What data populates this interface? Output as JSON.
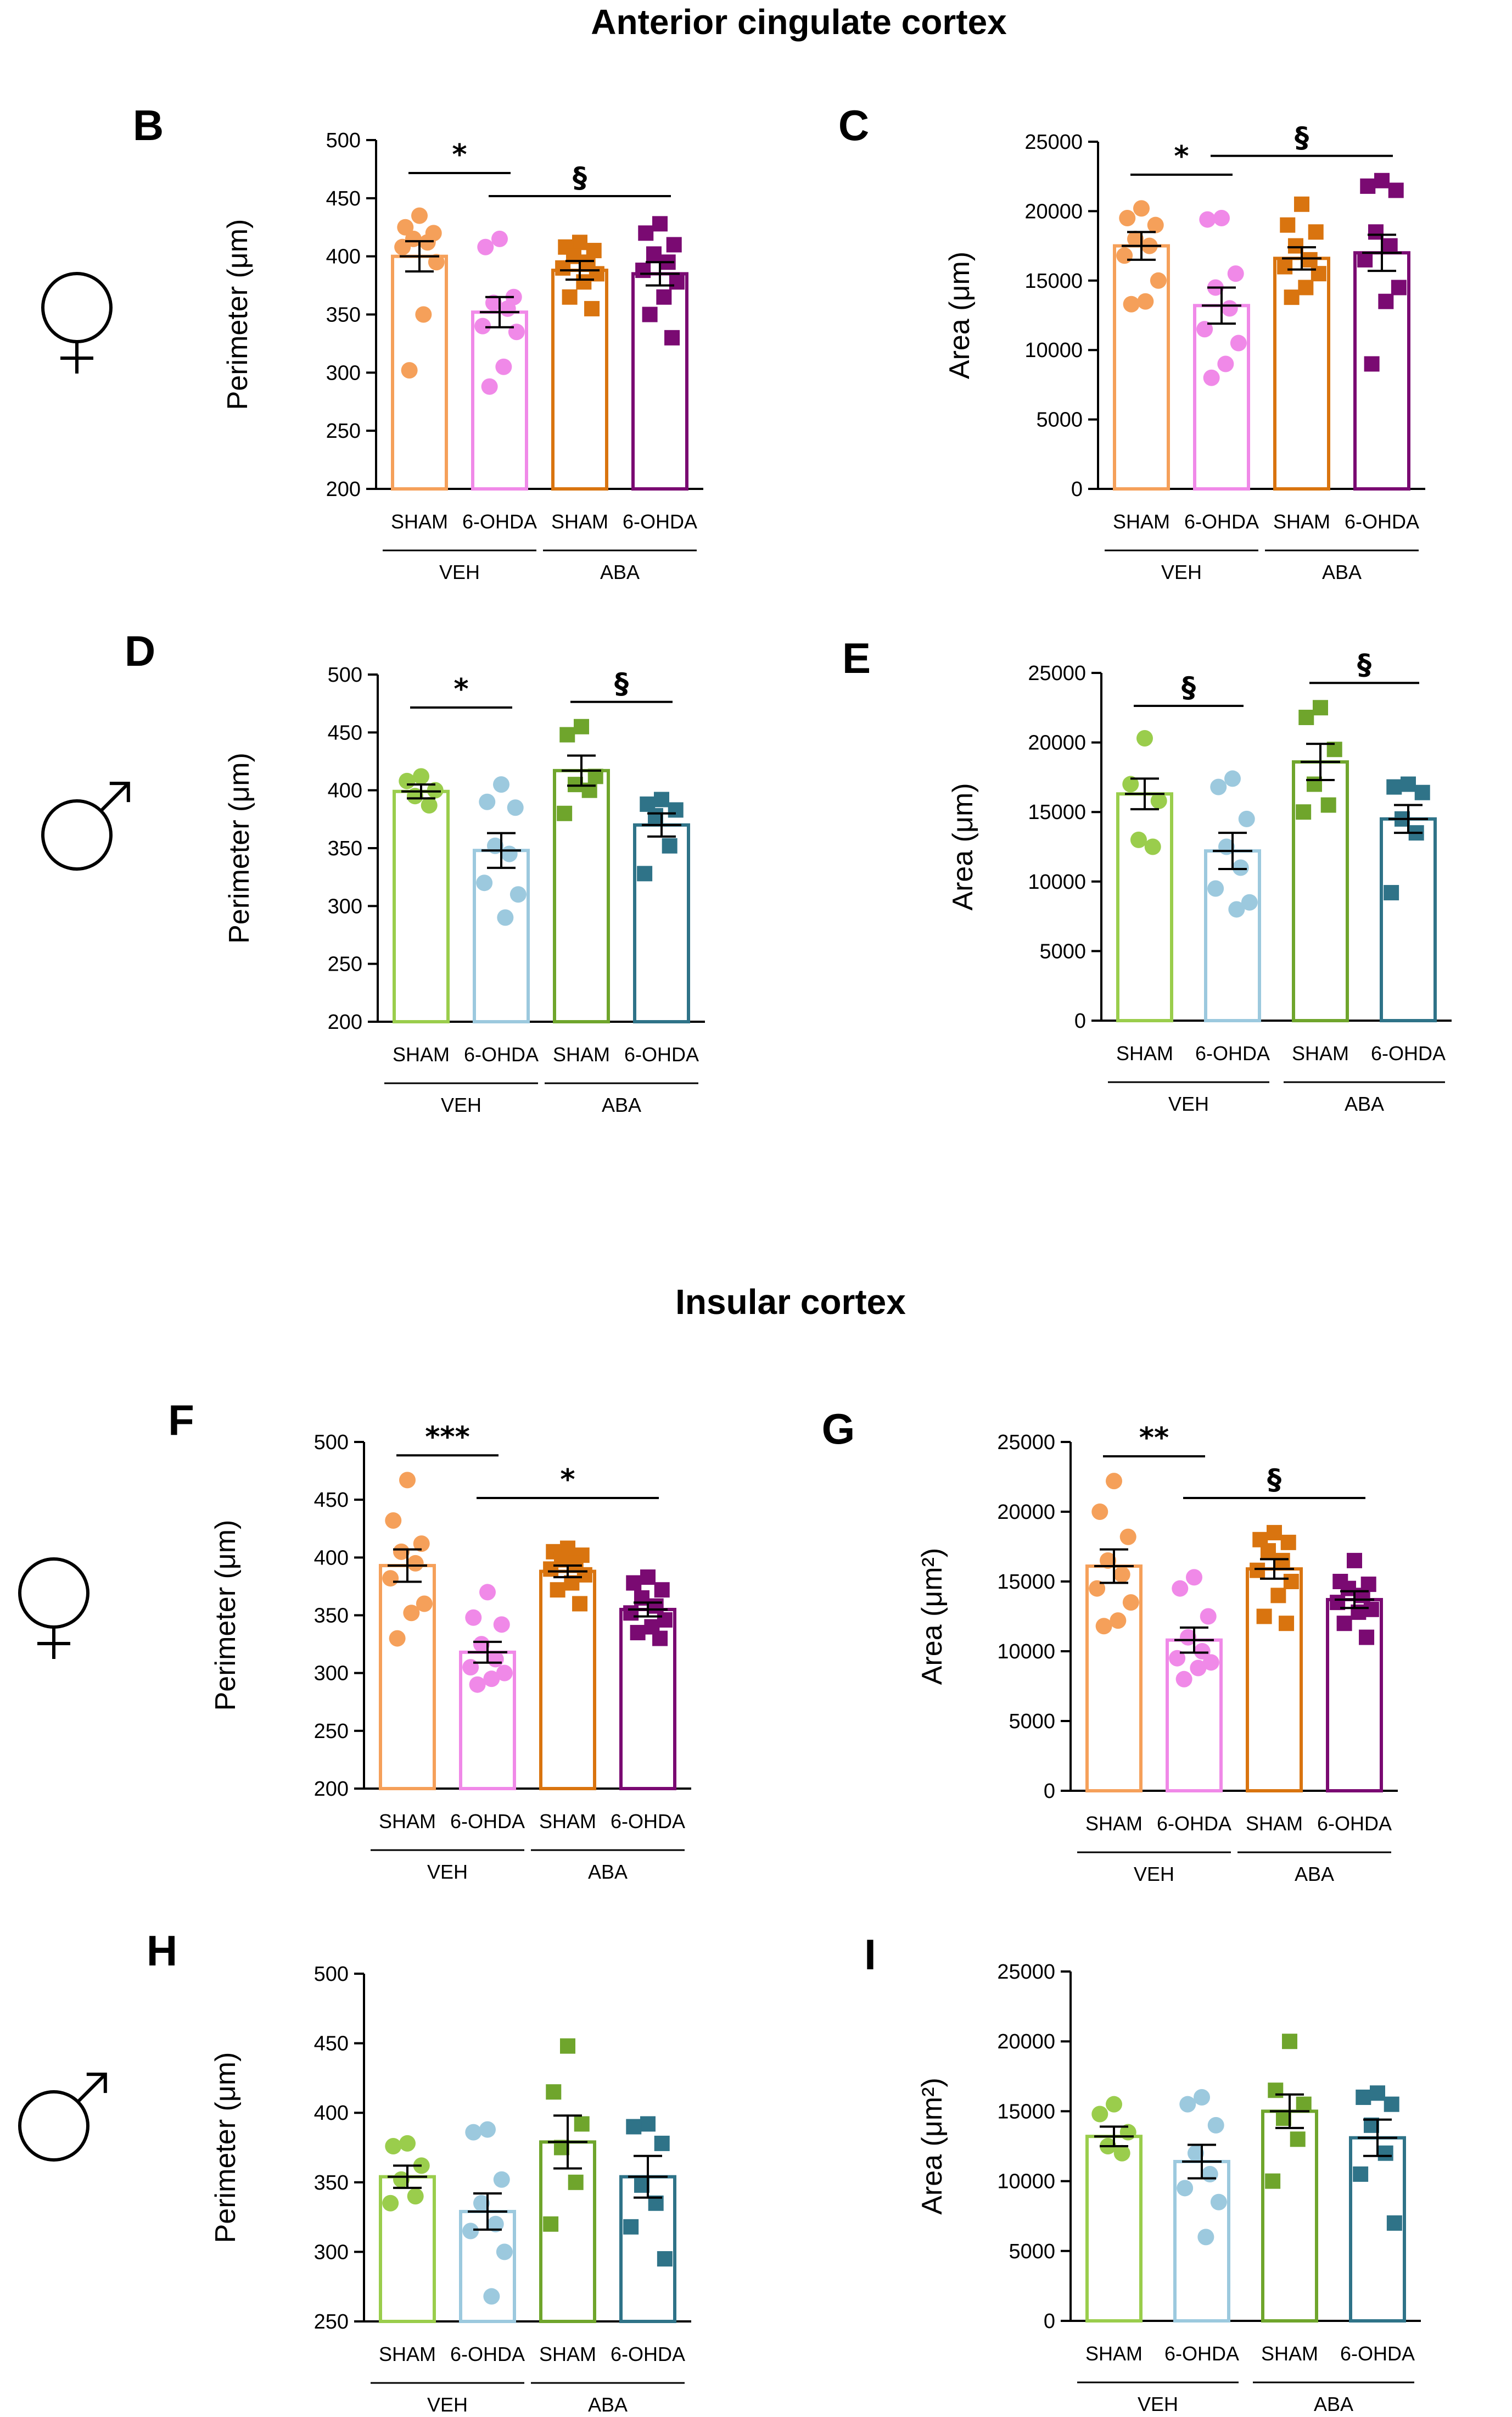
{
  "colors": {
    "female_sham": "#f5a05a",
    "female_ohda": "#f089e8",
    "female_aba_sham": "#d9740f",
    "female_aba_ohda": "#7a0a72",
    "male_sham": "#9acd4c",
    "male_ohda": "#9cc9de",
    "male_aba_sham": "#6fa52c",
    "male_aba_ohda": "#2f7388"
  },
  "sections": [
    {
      "title": "Anterior cingulate cortex"
    },
    {
      "title": "Insular cortex"
    }
  ],
  "sex_symbols": [
    {
      "symbol": "female",
      "row": "B/C"
    },
    {
      "symbol": "male",
      "row": "D/E"
    },
    {
      "symbol": "female",
      "row": "F/G"
    },
    {
      "symbol": "male",
      "row": "H/I"
    }
  ],
  "chart_data": [
    {
      "panel": "B",
      "type": "bar",
      "ylabel": "Perimeter (μm)",
      "ylim": [
        200,
        500
      ],
      "yticks": [
        "500",
        "450",
        "400",
        "350",
        "300",
        "250",
        "200"
      ],
      "categories": [
        "SHAM",
        "6-OHDA",
        "SHAM",
        "6-OHDA"
      ],
      "groups": [
        "VEH",
        "ABA"
      ],
      "series": [
        {
          "name": "VEH SHAM",
          "mean": 400,
          "sem": 13,
          "marker": "circle",
          "color_key": "female_sham",
          "points": [
            435,
            425,
            420,
            415,
            412,
            408,
            395,
            350,
            302
          ]
        },
        {
          "name": "VEH 6-OHDA",
          "mean": 352,
          "sem": 13,
          "marker": "circle",
          "color_key": "female_ohda",
          "points": [
            415,
            408,
            365,
            360,
            355,
            340,
            335,
            305,
            288
          ]
        },
        {
          "name": "ABA SHAM",
          "mean": 388,
          "sem": 8,
          "marker": "square",
          "color_key": "female_aba_sham",
          "points": [
            412,
            408,
            405,
            400,
            395,
            390,
            385,
            378,
            365,
            355
          ]
        },
        {
          "name": "ABA 6-OHDA",
          "mean": 385,
          "sem": 10,
          "marker": "square",
          "color_key": "female_aba_ohda",
          "points": [
            428,
            420,
            410,
            402,
            395,
            388,
            378,
            365,
            350,
            330
          ]
        }
      ],
      "brackets": [
        {
          "from": 0,
          "to": 1,
          "label": "*"
        },
        {
          "from": 1,
          "to": 3,
          "label": "§"
        }
      ]
    },
    {
      "panel": "C",
      "type": "bar",
      "ylabel": "Area (μm)",
      "ylim": [
        0,
        25000
      ],
      "yticks": [
        "25000",
        "20000",
        "15000",
        "10000",
        "5000",
        "0"
      ],
      "categories": [
        "SHAM",
        "6-OHDA",
        "SHAM",
        "6-OHDA"
      ],
      "groups": [
        "VEH",
        "ABA"
      ],
      "series": [
        {
          "name": "VEH SHAM",
          "mean": 17500,
          "sem": 1000,
          "marker": "circle",
          "color_key": "female_sham",
          "points": [
            20200,
            19500,
            19000,
            18000,
            17500,
            16800,
            15000,
            13500,
            13300
          ]
        },
        {
          "name": "VEH 6-OHDA",
          "mean": 13200,
          "sem": 1300,
          "marker": "circle",
          "color_key": "female_ohda",
          "points": [
            19500,
            19400,
            15500,
            14500,
            13000,
            11500,
            10500,
            9000,
            8000
          ]
        },
        {
          "name": "ABA SHAM",
          "mean": 16600,
          "sem": 800,
          "marker": "square",
          "color_key": "female_aba_sham",
          "points": [
            20500,
            19000,
            18500,
            17500,
            16500,
            16000,
            15500,
            14500,
            13800
          ]
        },
        {
          "name": "ABA 6-OHDA",
          "mean": 17000,
          "sem": 1300,
          "marker": "square",
          "color_key": "female_aba_ohda",
          "points": [
            22200,
            21800,
            21500,
            18500,
            17500,
            16500,
            14500,
            13500,
            9000
          ]
        }
      ],
      "brackets": [
        {
          "from": 0,
          "to": 1,
          "label": "*"
        },
        {
          "from": 1,
          "to": 3,
          "label": "§"
        }
      ]
    },
    {
      "panel": "D",
      "type": "bar",
      "ylabel": "Perimeter (μm)",
      "ylim": [
        200,
        500
      ],
      "yticks": [
        "500",
        "450",
        "400",
        "350",
        "300",
        "250",
        "200"
      ],
      "categories": [
        "SHAM",
        "6-OHDA",
        "SHAM",
        "6-OHDA"
      ],
      "groups": [
        "VEH",
        "ABA"
      ],
      "series": [
        {
          "name": "VEH SHAM",
          "mean": 399,
          "sem": 6,
          "marker": "circle",
          "color_key": "male_sham",
          "points": [
            412,
            408,
            400,
            395,
            387
          ]
        },
        {
          "name": "VEH 6-OHDA",
          "mean": 348,
          "sem": 15,
          "marker": "circle",
          "color_key": "male_ohda",
          "points": [
            405,
            390,
            385,
            352,
            345,
            320,
            310,
            290
          ]
        },
        {
          "name": "ABA SHAM",
          "mean": 417,
          "sem": 13,
          "marker": "square",
          "color_key": "male_aba_sham",
          "points": [
            455,
            448,
            412,
            405,
            400,
            380
          ]
        },
        {
          "name": "ABA 6-OHDA",
          "mean": 370,
          "sem": 10,
          "marker": "square",
          "color_key": "male_aba_ohda",
          "points": [
            392,
            388,
            383,
            378,
            352,
            328
          ]
        }
      ],
      "brackets": [
        {
          "from": 0,
          "to": 1,
          "label": "*"
        },
        {
          "from": 2,
          "to": 3,
          "label": "§"
        }
      ]
    },
    {
      "panel": "E",
      "type": "bar",
      "ylabel": "Area (μm)",
      "ylim": [
        0,
        25000
      ],
      "yticks": [
        "25000",
        "20000",
        "15000",
        "10000",
        "5000",
        "0"
      ],
      "categories": [
        "SHAM",
        "6-OHDA",
        "SHAM",
        "6-OHDA"
      ],
      "groups": [
        "VEH",
        "ABA"
      ],
      "series": [
        {
          "name": "VEH SHAM",
          "mean": 16300,
          "sem": 1100,
          "marker": "circle",
          "color_key": "male_sham",
          "points": [
            20300,
            17000,
            15800,
            13000,
            12500
          ]
        },
        {
          "name": "VEH 6-OHDA",
          "mean": 12200,
          "sem": 1300,
          "marker": "circle",
          "color_key": "male_ohda",
          "points": [
            17400,
            16800,
            14500,
            12500,
            11000,
            9500,
            8500,
            8000
          ]
        },
        {
          "name": "ABA SHAM",
          "mean": 18600,
          "sem": 1300,
          "marker": "square",
          "color_key": "male_aba_sham",
          "points": [
            22500,
            21800,
            19500,
            17000,
            15500,
            15000
          ]
        },
        {
          "name": "ABA 6-OHDA",
          "mean": 14500,
          "sem": 1000,
          "marker": "square",
          "color_key": "male_aba_ohda",
          "points": [
            17000,
            16800,
            16400,
            14500,
            13500,
            9200
          ]
        }
      ],
      "brackets": [
        {
          "from": 0,
          "to": 1,
          "label": "§"
        },
        {
          "from": 2,
          "to": 3,
          "label": "§"
        }
      ]
    },
    {
      "panel": "F",
      "type": "bar",
      "ylabel": "Perimeter (μm)",
      "ylim": [
        200,
        500
      ],
      "yticks": [
        "500",
        "450",
        "400",
        "350",
        "300",
        "250",
        "200"
      ],
      "categories": [
        "SHAM",
        "6-OHDA",
        "SHAM",
        "6-OHDA"
      ],
      "groups": [
        "VEH",
        "ABA"
      ],
      "series": [
        {
          "name": "VEH SHAM",
          "mean": 393,
          "sem": 14,
          "marker": "circle",
          "color_key": "female_sham",
          "points": [
            467,
            432,
            412,
            405,
            395,
            382,
            360,
            352,
            330
          ]
        },
        {
          "name": "VEH 6-OHDA",
          "mean": 318,
          "sem": 9,
          "marker": "circle",
          "color_key": "female_ohda",
          "points": [
            370,
            348,
            342,
            325,
            312,
            305,
            300,
            295,
            290
          ]
        },
        {
          "name": "ABA SHAM",
          "mean": 388,
          "sem": 5,
          "marker": "square",
          "color_key": "female_aba_sham",
          "points": [
            408,
            405,
            402,
            398,
            395,
            390,
            385,
            378,
            372,
            360
          ]
        },
        {
          "name": "ABA 6-OHDA",
          "mean": 355,
          "sem": 6,
          "marker": "square",
          "color_key": "female_aba_ohda",
          "points": [
            383,
            378,
            372,
            365,
            358,
            352,
            346,
            340,
            335,
            330
          ]
        }
      ],
      "brackets": [
        {
          "from": 0,
          "to": 1,
          "label": "***"
        },
        {
          "from": 1,
          "to": 3,
          "label": "*"
        }
      ]
    },
    {
      "panel": "G",
      "type": "bar",
      "ylabel": "Area (μm²)",
      "ylim": [
        0,
        25000
      ],
      "yticks": [
        "25000",
        "20000",
        "15000",
        "10000",
        "5000",
        "0"
      ],
      "categories": [
        "SHAM",
        "6-OHDA",
        "SHAM",
        "6-OHDA"
      ],
      "groups": [
        "VEH",
        "ABA"
      ],
      "series": [
        {
          "name": "VEH SHAM",
          "mean": 16100,
          "sem": 1200,
          "marker": "circle",
          "color_key": "female_sham",
          "points": [
            22200,
            20000,
            18200,
            16500,
            15500,
            14500,
            13500,
            12200,
            11800
          ]
        },
        {
          "name": "VEH 6-OHDA",
          "mean": 10800,
          "sem": 900,
          "marker": "circle",
          "color_key": "female_ohda",
          "points": [
            15300,
            14500,
            12500,
            11000,
            10000,
            9500,
            9200,
            8800,
            8000
          ]
        },
        {
          "name": "ABA SHAM",
          "mean": 15900,
          "sem": 700,
          "marker": "square",
          "color_key": "female_aba_sham",
          "points": [
            18500,
            18000,
            17800,
            17200,
            16500,
            15800,
            15000,
            14000,
            12500,
            12000
          ]
        },
        {
          "name": "ABA 6-OHDA",
          "mean": 13700,
          "sem": 600,
          "marker": "square",
          "color_key": "female_aba_ohda",
          "points": [
            16500,
            15000,
            14800,
            14500,
            14000,
            13500,
            13000,
            12800,
            12000,
            11000
          ]
        }
      ],
      "brackets": [
        {
          "from": 0,
          "to": 1,
          "label": "**"
        },
        {
          "from": 1,
          "to": 3,
          "label": "§"
        }
      ]
    },
    {
      "panel": "H",
      "type": "bar",
      "ylabel": "Perimeter (μm)",
      "ylim": [
        250,
        500
      ],
      "yticks": [
        "500",
        "450",
        "400",
        "350",
        "300",
        "250"
      ],
      "categories": [
        "SHAM",
        "6-OHDA",
        "SHAM",
        "6-OHDA"
      ],
      "groups": [
        "VEH",
        "ABA"
      ],
      "series": [
        {
          "name": "VEH SHAM",
          "mean": 354,
          "sem": 8,
          "marker": "circle",
          "color_key": "male_sham",
          "points": [
            378,
            376,
            362,
            352,
            340,
            335
          ]
        },
        {
          "name": "VEH 6-OHDA",
          "mean": 329,
          "sem": 13,
          "marker": "circle",
          "color_key": "male_ohda",
          "points": [
            388,
            386,
            352,
            335,
            320,
            315,
            300,
            268
          ]
        },
        {
          "name": "ABA SHAM",
          "mean": 379,
          "sem": 19,
          "marker": "square",
          "color_key": "male_aba_sham",
          "points": [
            448,
            415,
            392,
            375,
            350,
            320
          ]
        },
        {
          "name": "ABA 6-OHDA",
          "mean": 354,
          "sem": 15,
          "marker": "square",
          "color_key": "male_aba_ohda",
          "points": [
            392,
            390,
            378,
            348,
            335,
            318,
            295
          ]
        }
      ],
      "brackets": []
    },
    {
      "panel": "I",
      "type": "bar",
      "ylabel": "Area (μm²)",
      "ylim": [
        0,
        25000
      ],
      "yticks": [
        "25000",
        "20000",
        "15000",
        "10000",
        "5000",
        "0"
      ],
      "categories": [
        "SHAM",
        "6-OHDA",
        "SHAM",
        "6-OHDA"
      ],
      "groups": [
        "VEH",
        "ABA"
      ],
      "series": [
        {
          "name": "VEH SHAM",
          "mean": 13200,
          "sem": 700,
          "marker": "circle",
          "color_key": "male_sham",
          "points": [
            15500,
            14800,
            13500,
            12500,
            12000
          ]
        },
        {
          "name": "VEH 6-OHDA",
          "mean": 11400,
          "sem": 1200,
          "marker": "circle",
          "color_key": "male_ohda",
          "points": [
            16000,
            15500,
            14000,
            12000,
            10500,
            9500,
            8500,
            6000
          ]
        },
        {
          "name": "ABA SHAM",
          "mean": 15000,
          "sem": 1200,
          "marker": "square",
          "color_key": "male_aba_sham",
          "points": [
            20000,
            16500,
            15500,
            14500,
            13000,
            10000
          ]
        },
        {
          "name": "ABA 6-OHDA",
          "mean": 13100,
          "sem": 1300,
          "marker": "square",
          "color_key": "male_aba_ohda",
          "points": [
            16300,
            16000,
            15500,
            14000,
            12000,
            10500,
            7000
          ]
        }
      ],
      "brackets": []
    }
  ]
}
